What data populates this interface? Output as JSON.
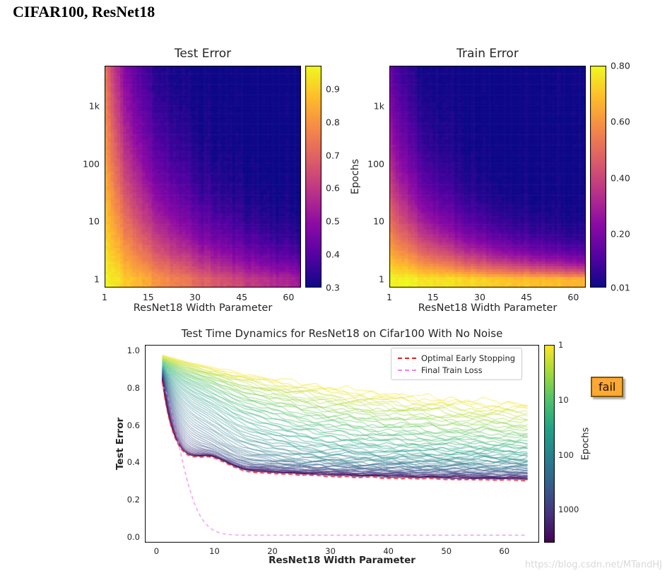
{
  "page": {
    "title": "CIFAR100, ResNet18",
    "watermark": "https://blog.csdn.net/MTandHJ",
    "background": "#ffffff"
  },
  "fail_badge": {
    "label": "fail",
    "bg": "#ffa832",
    "border": "#7a5a10"
  },
  "colormaps": {
    "plasma": [
      [
        13,
        8,
        135
      ],
      [
        84,
        2,
        163
      ],
      [
        139,
        10,
        165
      ],
      [
        185,
        50,
        137
      ],
      [
        219,
        92,
        104
      ],
      [
        244,
        136,
        73
      ],
      [
        254,
        188,
        43
      ],
      [
        240,
        249,
        33
      ]
    ],
    "viridis": [
      [
        68,
        1,
        84
      ],
      [
        70,
        50,
        127
      ],
      [
        54,
        92,
        141
      ],
      [
        39,
        127,
        142
      ],
      [
        31,
        161,
        135
      ],
      [
        74,
        194,
        109
      ],
      [
        159,
        218,
        58
      ],
      [
        253,
        231,
        37
      ]
    ]
  },
  "chart_data": [
    {
      "id": "test_error_heatmap",
      "type": "heatmap",
      "title": "Test Error",
      "xlabel": "ResNet18 Width Parameter",
      "ylabel": "",
      "x_range": [
        1,
        64
      ],
      "y_log_range": [
        -0.15,
        3.7
      ],
      "xticks": [
        {
          "v": 1,
          "label": "1"
        },
        {
          "v": 15,
          "label": "15"
        },
        {
          "v": 30,
          "label": "30"
        },
        {
          "v": 45,
          "label": "45"
        },
        {
          "v": 60,
          "label": "60"
        }
      ],
      "yticks": [
        {
          "v": 1,
          "label": "1"
        },
        {
          "v": 10,
          "label": "10"
        },
        {
          "v": 100,
          "label": "100"
        },
        {
          "v": 1000,
          "label": "1k"
        }
      ],
      "colorbar": {
        "cmap": "plasma",
        "vmin": 0.3,
        "vmax": 0.97,
        "ticks": [
          {
            "v": 0.9,
            "label": "0.9"
          },
          {
            "v": 0.8,
            "label": "0.8"
          },
          {
            "v": 0.7,
            "label": "0.7"
          },
          {
            "v": 0.6,
            "label": "0.6"
          },
          {
            "v": 0.5,
            "label": "0.5"
          },
          {
            "v": 0.4,
            "label": "0.4"
          },
          {
            "v": 0.3,
            "label": "0.3"
          }
        ]
      },
      "value_model": {
        "formula": "test_error = base + amp*exp(-(a*x*y + b*x + c*y)); x=(width-1)/10, y=log10(epoch); high error at small width / few epochs, ~0.30 at large width and many epochs",
        "base": 0.29,
        "amp": 0.68,
        "a": 0.32,
        "b": 0.16,
        "c": 0.1,
        "noise": 0.012,
        "seed": 11
      }
    },
    {
      "id": "train_error_heatmap",
      "type": "heatmap",
      "title": "Train Error",
      "xlabel": "ResNet18 Width Parameter",
      "ylabel": "Epochs",
      "x_range": [
        1,
        64
      ],
      "y_log_range": [
        -0.15,
        3.7
      ],
      "xticks": [
        {
          "v": 1,
          "label": "1"
        },
        {
          "v": 15,
          "label": "15"
        },
        {
          "v": 30,
          "label": "30"
        },
        {
          "v": 45,
          "label": "45"
        },
        {
          "v": 60,
          "label": "60"
        }
      ],
      "yticks": [
        {
          "v": 1,
          "label": "1"
        },
        {
          "v": 10,
          "label": "10"
        },
        {
          "v": 100,
          "label": "100"
        },
        {
          "v": 1000,
          "label": "1k"
        }
      ],
      "colorbar": {
        "cmap": "plasma",
        "vmin": 0.01,
        "vmax": 0.8,
        "ticks": [
          {
            "v": 0.8,
            "label": "0.80"
          },
          {
            "v": 0.6,
            "label": "0.60"
          },
          {
            "v": 0.4,
            "label": "0.40"
          },
          {
            "v": 0.2,
            "label": "0.20"
          },
          {
            "v": 0.01,
            "label": "0.01"
          }
        ]
      },
      "value_model": {
        "formula": "train_error = base + amp*exp(-(a*x*y + b*x + c*y)); x=(width-1)/10, y=log10(epoch); yellow (high) at bottom-left, near 0 above hyperbolic interpolation boundary",
        "base": 0.01,
        "amp": 0.79,
        "a": 0.5,
        "b": 0.03,
        "c": 0.42,
        "noise": 0.012,
        "seed": 22
      }
    },
    {
      "id": "test_time_dynamics",
      "type": "line",
      "title": "Test Time Dynamics for ResNet18 on Cifar100 With No Noise",
      "xlabel": "ResNet18 Width Parameter",
      "ylabel": "Test Error",
      "xlim": [
        -2,
        66
      ],
      "ylim": [
        -0.03,
        1.03
      ],
      "xticks": [
        {
          "v": 0,
          "label": "0"
        },
        {
          "v": 10,
          "label": "10"
        },
        {
          "v": 20,
          "label": "20"
        },
        {
          "v": 30,
          "label": "30"
        },
        {
          "v": 40,
          "label": "40"
        },
        {
          "v": 50,
          "label": "50"
        },
        {
          "v": 60,
          "label": "60"
        }
      ],
      "yticks": [
        {
          "v": 0,
          "label": "0.0"
        },
        {
          "v": 0.2,
          "label": "0.2"
        },
        {
          "v": 0.4,
          "label": "0.4"
        },
        {
          "v": 0.6,
          "label": "0.6"
        },
        {
          "v": 0.8,
          "label": "0.8"
        },
        {
          "v": 1,
          "label": "1.0"
        }
      ],
      "legend": [
        {
          "label": "Optimal Early Stopping",
          "color": "#e32227",
          "dash": [
            6,
            4
          ]
        },
        {
          "label": "Final Train Loss",
          "color": "#ee82ee",
          "dash": [
            5,
            4
          ]
        }
      ],
      "colorbar": {
        "label": "Epochs",
        "cmap": "viridis_epoch1_yellow_top",
        "log_range": [
          0,
          3.6
        ],
        "ticks": [
          {
            "v": 1,
            "label": "1"
          },
          {
            "v": 10,
            "label": "10"
          },
          {
            "v": 100,
            "label": "100"
          },
          {
            "v": 1000,
            "label": "1000"
          }
        ]
      },
      "series_model": {
        "description": "65 test-error-vs-width curves, one per epoch, log-spaced epochs 1..4000 (t=log10(epoch)/3.6). Epoch-1 curve runs ~0.97@w=1 down to ~0.72@w=64; late-epoch curves drop steeply to ~0.31 with a double-descent bump near width 9.5.",
        "n_lines": 65,
        "log_range": [
          0,
          3.6
        ],
        "start": {
          "a": 0.84,
          "b": 0.135
        },
        "conv": {
          "a": 0.302,
          "b": 0.09,
          "len": 28,
          "c": 0.35,
          "p": 1.7
        },
        "L": {
          "a": 2,
          "b": 40,
          "p": 2.5
        },
        "bump": {
          "amp": 0.06,
          "center": 9.5,
          "width": 14,
          "tp": 1.2
        },
        "wiggle": {
          "base": 0.006,
          "extra": 0.018
        },
        "opt_offset": 0.006,
        "train": {
          "base": 0.01,
          "amp": 0.8,
          "len": 4.3,
          "p": 1.7
        },
        "optimal_early_stopping_samples": {
          "w": [
            1,
            5,
            9.5,
            20,
            30,
            45,
            64
          ],
          "test_error": [
            0.83,
            0.45,
            0.47,
            0.37,
            0.34,
            0.32,
            0.31
          ]
        },
        "final_train_loss_samples": {
          "w": [
            1,
            5,
            10,
            13,
            20,
            64
          ],
          "value": [
            0.81,
            0.33,
            0.03,
            0.01,
            0.01,
            0.01
          ]
        }
      }
    }
  ]
}
